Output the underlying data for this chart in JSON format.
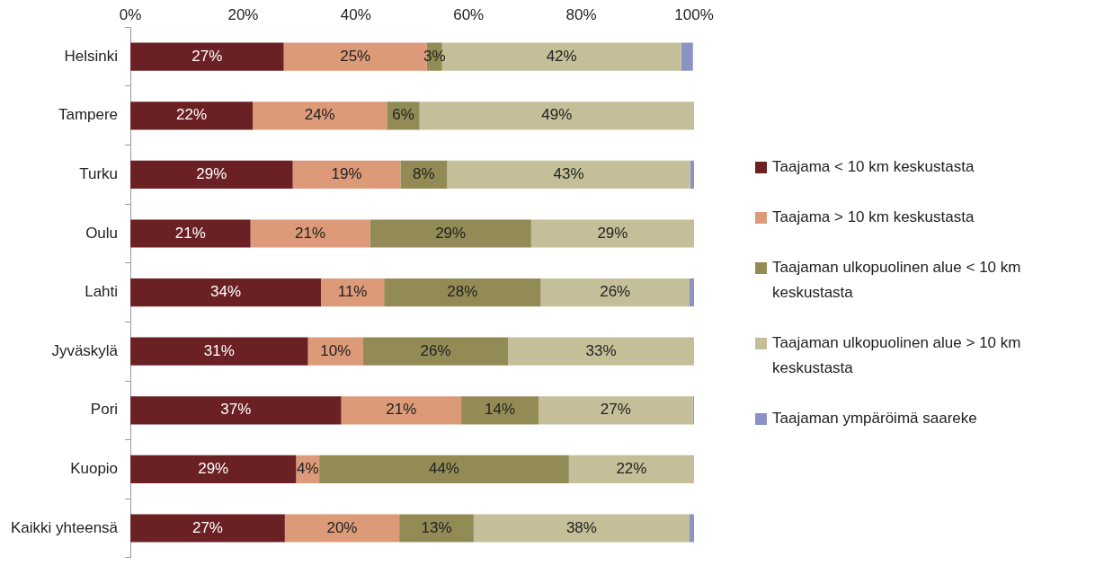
{
  "chart_data": {
    "type": "bar",
    "orientation": "horizontal",
    "stacked": true,
    "categories": [
      "Helsinki",
      "Tampere",
      "Turku",
      "Oulu",
      "Lahti",
      "Jyväskylä",
      "Pori",
      "Kuopio",
      "Kaikki yhteensä"
    ],
    "xlim": [
      0,
      100
    ],
    "xticks": [
      {
        "value": 0,
        "label": "0%"
      },
      {
        "value": 20,
        "label": "20%"
      },
      {
        "value": 40,
        "label": "40%"
      },
      {
        "value": 60,
        "label": "60%"
      },
      {
        "value": 80,
        "label": "80%"
      },
      {
        "value": 100,
        "label": "100%"
      }
    ],
    "grid": false,
    "legend": "right",
    "series": [
      {
        "name": "Taajama < 10 km keskustasta",
        "color": "#6b2023",
        "values": [
          27.2,
          21.7,
          28.8,
          21.3,
          33.8,
          31.5,
          37.4,
          29.4,
          27.4
        ],
        "value_labels": [
          "27%",
          "22%",
          "29%",
          "21%",
          "34%",
          "31%",
          "37%",
          "29%",
          "27%"
        ]
      },
      {
        "name": "Taajama > 10 km keskustasta",
        "color": "#dc9a78",
        "values": [
          25.4,
          23.8,
          19.1,
          21.2,
          11.2,
          9.8,
          21.3,
          4.1,
          20.3
        ],
        "value_labels": [
          "25%",
          "24%",
          "19%",
          "21%",
          "11%",
          "10%",
          "21%",
          "4%",
          "20%"
        ]
      },
      {
        "name": "Taajaman ulkopuolinen alue < 10 km keskustasta",
        "color": "#938b55",
        "values": [
          2.7,
          5.8,
          8.3,
          28.6,
          27.8,
          25.7,
          13.7,
          44.3,
          13.2
        ],
        "value_labels": [
          "3%",
          "6%",
          "8%",
          "29%",
          "28%",
          "26%",
          "14%",
          "44%",
          "13%"
        ]
      },
      {
        "name": "Taajaman ulkopuolinen alue > 10 km keskustasta",
        "color": "#c4bf98",
        "values": [
          42.4,
          48.7,
          43.1,
          28.9,
          26.4,
          33.0,
          27.4,
          22.2,
          38.3
        ],
        "value_labels": [
          "42%",
          "49%",
          "43%",
          "29%",
          "26%",
          "33%",
          "27%",
          "22%",
          "38%"
        ]
      },
      {
        "name": "Taajaman ympäröimä saareke",
        "color": "#8b93c4",
        "values": [
          2.1,
          0,
          0.7,
          0,
          0.8,
          0,
          0.2,
          0,
          0.8
        ]
      }
    ]
  }
}
